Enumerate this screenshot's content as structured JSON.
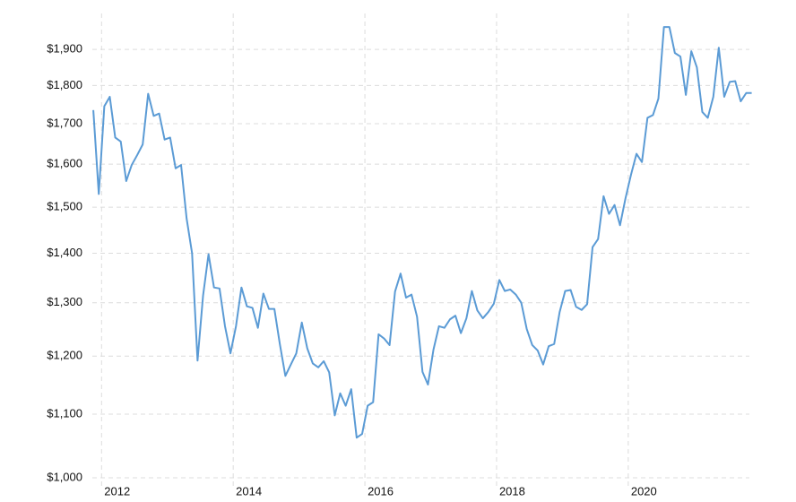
{
  "chart_data": {
    "type": "line",
    "log_y": true,
    "grid": true,
    "xlim": [
      2011.86,
      2021.84
    ],
    "xticks": [
      2012,
      2014,
      2016,
      2018,
      2020
    ],
    "ylim": [
      1000,
      2000
    ],
    "yticks": [
      {
        "value": 1000,
        "label": "$1,000"
      },
      {
        "value": 1100,
        "label": "$1,100"
      },
      {
        "value": 1200,
        "label": "$1,200"
      },
      {
        "value": 1300,
        "label": "$1,300"
      },
      {
        "value": 1400,
        "label": "$1,400"
      },
      {
        "value": 1500,
        "label": "$1,500"
      },
      {
        "value": 1600,
        "label": "$1,600"
      },
      {
        "value": 1700,
        "label": "$1,700"
      },
      {
        "value": 1800,
        "label": "$1,800"
      },
      {
        "value": 1900,
        "label": "$1,900"
      }
    ],
    "x": [
      2011.875,
      2011.958,
      2012.042,
      2012.125,
      2012.208,
      2012.292,
      2012.375,
      2012.458,
      2012.542,
      2012.625,
      2012.708,
      2012.792,
      2012.875,
      2012.958,
      2013.042,
      2013.125,
      2013.208,
      2013.292,
      2013.375,
      2013.458,
      2013.542,
      2013.625,
      2013.708,
      2013.792,
      2013.875,
      2013.958,
      2014.042,
      2014.125,
      2014.208,
      2014.292,
      2014.375,
      2014.458,
      2014.542,
      2014.625,
      2014.708,
      2014.792,
      2014.875,
      2014.958,
      2015.042,
      2015.125,
      2015.208,
      2015.292,
      2015.375,
      2015.458,
      2015.542,
      2015.625,
      2015.708,
      2015.792,
      2015.875,
      2015.958,
      2016.042,
      2016.125,
      2016.208,
      2016.292,
      2016.375,
      2016.458,
      2016.542,
      2016.625,
      2016.708,
      2016.792,
      2016.875,
      2016.958,
      2017.042,
      2017.125,
      2017.208,
      2017.292,
      2017.375,
      2017.458,
      2017.542,
      2017.625,
      2017.708,
      2017.792,
      2017.875,
      2017.958,
      2018.042,
      2018.125,
      2018.208,
      2018.292,
      2018.375,
      2018.458,
      2018.542,
      2018.625,
      2018.708,
      2018.792,
      2018.875,
      2018.958,
      2019.042,
      2019.125,
      2019.208,
      2019.292,
      2019.375,
      2019.458,
      2019.542,
      2019.625,
      2019.708,
      2019.792,
      2019.875,
      2019.958,
      2020.042,
      2020.125,
      2020.208,
      2020.292,
      2020.375,
      2020.458,
      2020.542,
      2020.625,
      2020.708,
      2020.792,
      2020.875,
      2020.958,
      2021.042,
      2021.125,
      2021.208,
      2021.292,
      2021.375,
      2021.458,
      2021.542,
      2021.625,
      2021.708,
      2021.792,
      2021.875
    ],
    "series": [
      {
        "color": "#5b9bd5",
        "values": [
          1735,
          1530,
          1745,
          1770,
          1665,
          1655,
          1560,
          1598,
          1622,
          1648,
          1778,
          1720,
          1726,
          1660,
          1665,
          1590,
          1598,
          1475,
          1400,
          1192,
          1314,
          1398,
          1330,
          1328,
          1255,
          1205,
          1255,
          1330,
          1293,
          1290,
          1252,
          1318,
          1288,
          1288,
          1222,
          1165,
          1185,
          1205,
          1262,
          1214,
          1187,
          1180,
          1191,
          1171,
          1098,
          1135,
          1114,
          1142,
          1062,
          1068,
          1114,
          1120,
          1240,
          1232,
          1220,
          1322,
          1358,
          1310,
          1316,
          1273,
          1172,
          1150,
          1212,
          1255,
          1252,
          1268,
          1275,
          1242,
          1270,
          1323,
          1285,
          1270,
          1282,
          1298,
          1345,
          1323,
          1326,
          1316,
          1300,
          1250,
          1220,
          1210,
          1185,
          1218,
          1222,
          1282,
          1323,
          1325,
          1292,
          1286,
          1297,
          1413,
          1430,
          1525,
          1485,
          1505,
          1460,
          1520,
          1575,
          1625,
          1605,
          1715,
          1722,
          1765,
          1965,
          1965,
          1890,
          1880,
          1775,
          1895,
          1850,
          1730,
          1715,
          1770,
          1905,
          1770,
          1810,
          1812,
          1758,
          1780,
          1780
        ]
      }
    ]
  }
}
